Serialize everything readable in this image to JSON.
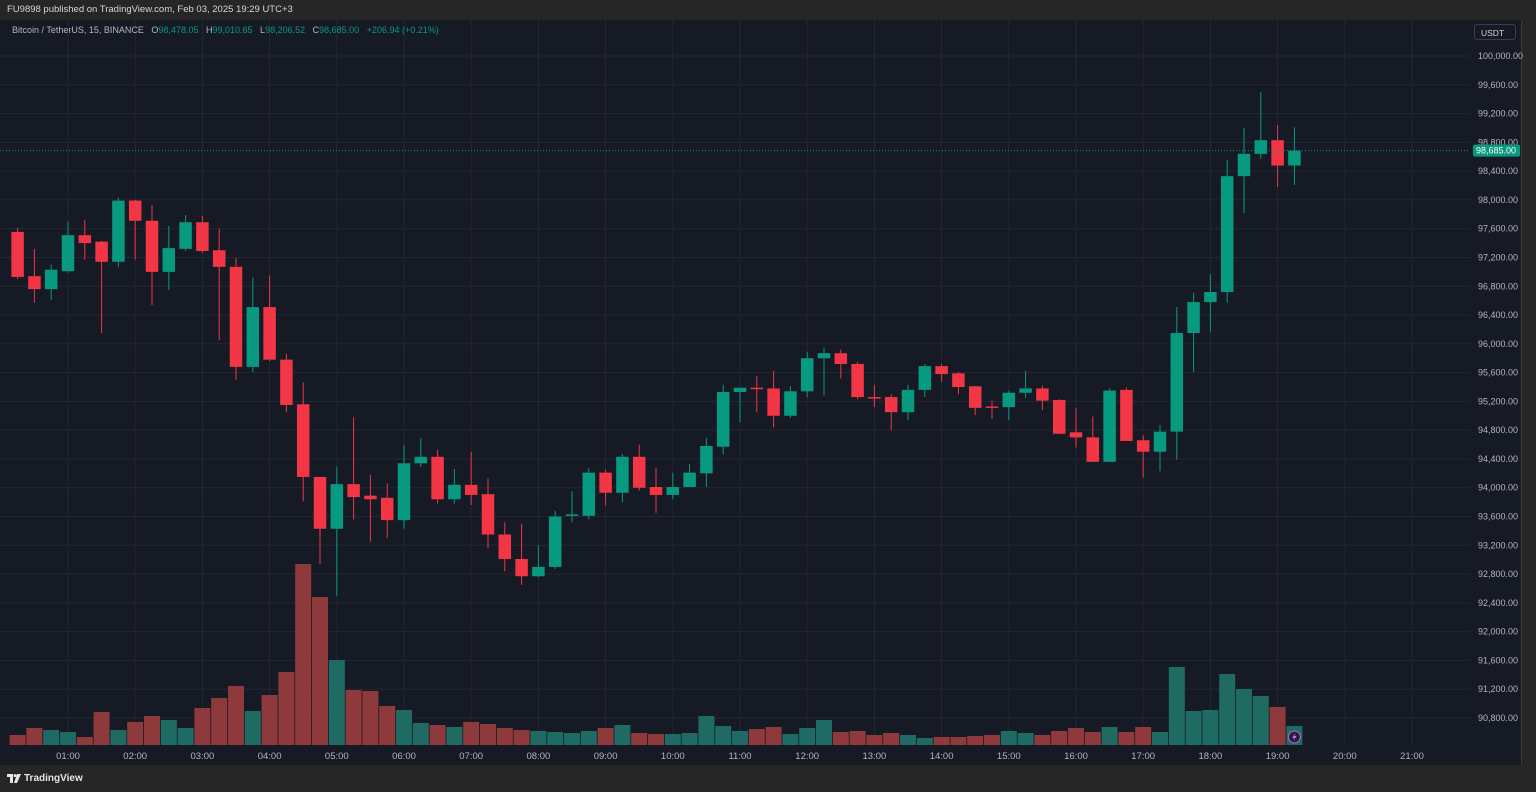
{
  "header": {
    "published": "FU9898 published on TradingView.com, Feb 03, 2025 19:29 UTC+3"
  },
  "legend": {
    "symbol": "Bitcoin / TetherUS, 15, BINANCE",
    "o_label": "O",
    "o": "98,478.05",
    "h_label": "H",
    "h": "99,010.65",
    "l_label": "L",
    "l": "98,206.52",
    "c_label": "C",
    "c": "98,685.00",
    "change": "+206.94 (+0.21%)"
  },
  "price_axis": {
    "unit": "USDT",
    "last_price_label": "98,685.00"
  },
  "footer": {
    "logo": "TradingView"
  },
  "colors": {
    "up": "#089981",
    "down": "#f23645",
    "up_volume": "#1f6b63",
    "down_volume": "#8e3a3d",
    "background": "#161a25",
    "grid": "#232733",
    "last_price": "#089981"
  },
  "icons": {
    "alert": "lightning-icon",
    "logo": "tradingview-logo-icon"
  },
  "chart_data": {
    "type": "candlestick",
    "title": "Bitcoin / TetherUS, 15, BINANCE",
    "interval_minutes": 15,
    "ylim": [
      90800,
      100000
    ],
    "y_ticks": [
      "100,000.00",
      "99,600.00",
      "99,200.00",
      "98,800.00",
      "98,400.00",
      "98,000.00",
      "97,600.00",
      "97,200.00",
      "96,800.00",
      "96,400.00",
      "96,000.00",
      "95,600.00",
      "95,200.00",
      "94,800.00",
      "94,400.00",
      "94,000.00",
      "93,600.00",
      "93,200.00",
      "92,800.00",
      "92,400.00",
      "92,000.00",
      "91,600.00",
      "91,200.00",
      "90,800.00"
    ],
    "x_ticks": [
      "01:00",
      "02:00",
      "03:00",
      "04:00",
      "05:00",
      "06:00",
      "07:00",
      "08:00",
      "09:00",
      "10:00",
      "11:00",
      "12:00",
      "13:00",
      "14:00",
      "15:00",
      "16:00",
      "17:00",
      "18:00",
      "19:00",
      "20:00",
      "21:00"
    ],
    "x_range": [
      "00:15",
      "21:30"
    ],
    "grid": true,
    "last_price": 98685,
    "columns": [
      "time",
      "open",
      "high",
      "low",
      "close",
      "volume"
    ],
    "candles": [
      [
        "00:15",
        97555,
        97610,
        96900,
        96930,
        10
      ],
      [
        "00:30",
        96940,
        97320,
        96570,
        96760,
        17
      ],
      [
        "00:45",
        96760,
        97100,
        96610,
        97030,
        15
      ],
      [
        "01:00",
        97010,
        97700,
        96990,
        97510,
        13
      ],
      [
        "01:15",
        97510,
        97720,
        97170,
        97400,
        8
      ],
      [
        "01:30",
        97420,
        97430,
        96150,
        97140,
        33
      ],
      [
        "01:45",
        97140,
        98030,
        97070,
        97990,
        15
      ],
      [
        "02:00",
        97990,
        98000,
        97170,
        97710,
        23
      ],
      [
        "02:15",
        97710,
        97920,
        96540,
        97000,
        29
      ],
      [
        "02:30",
        97000,
        97640,
        96750,
        97330,
        25
      ],
      [
        "02:45",
        97320,
        97790,
        97290,
        97690,
        17
      ],
      [
        "03:00",
        97690,
        97780,
        97260,
        97290,
        37
      ],
      [
        "03:15",
        97300,
        97600,
        96050,
        97070,
        47
      ],
      [
        "03:30",
        97070,
        97190,
        95500,
        95680,
        59
      ],
      [
        "03:45",
        95680,
        96920,
        95610,
        96510,
        34
      ],
      [
        "04:00",
        96510,
        96950,
        95760,
        95780,
        50
      ],
      [
        "04:15",
        95780,
        95860,
        95050,
        95150,
        73
      ],
      [
        "04:30",
        95160,
        95460,
        93810,
        94150,
        181
      ],
      [
        "04:45",
        94150,
        94150,
        92940,
        93430,
        148
      ],
      [
        "05:00",
        93430,
        94290,
        92500,
        94050,
        85
      ],
      [
        "05:15",
        94050,
        94980,
        93560,
        93870,
        55
      ],
      [
        "05:30",
        93890,
        94180,
        93250,
        93840,
        54
      ],
      [
        "05:45",
        93860,
        94060,
        93300,
        93550,
        39
      ],
      [
        "06:00",
        93550,
        94590,
        93430,
        94340,
        35
      ],
      [
        "06:15",
        94340,
        94690,
        94290,
        94430,
        22
      ],
      [
        "06:30",
        94430,
        94530,
        93780,
        93840,
        20
      ],
      [
        "06:45",
        93840,
        94260,
        93780,
        94040,
        18
      ],
      [
        "07:00",
        94040,
        94500,
        93760,
        93900,
        23
      ],
      [
        "07:15",
        93910,
        94130,
        93160,
        93350,
        21
      ],
      [
        "07:30",
        93350,
        93520,
        92840,
        93010,
        17
      ],
      [
        "07:45",
        93010,
        93500,
        92650,
        92770,
        15
      ],
      [
        "08:00",
        92770,
        93200,
        92760,
        92900,
        14
      ],
      [
        "08:15",
        92900,
        93680,
        92870,
        93600,
        13
      ],
      [
        "08:30",
        93610,
        93950,
        93520,
        93630,
        12
      ],
      [
        "08:45",
        93610,
        94270,
        93560,
        94210,
        14
      ],
      [
        "09:00",
        94210,
        94250,
        93750,
        93930,
        17
      ],
      [
        "09:15",
        93930,
        94470,
        93800,
        94430,
        20
      ],
      [
        "09:30",
        94430,
        94600,
        93960,
        94000,
        12
      ],
      [
        "09:45",
        94010,
        94270,
        93650,
        93900,
        11
      ],
      [
        "10:00",
        93900,
        94210,
        93840,
        94010,
        11
      ],
      [
        "10:15",
        94010,
        94330,
        94010,
        94210,
        12
      ],
      [
        "10:30",
        94200,
        94690,
        94010,
        94580,
        29
      ],
      [
        "10:45",
        94570,
        95430,
        94460,
        95330,
        19
      ],
      [
        "11:00",
        95330,
        95390,
        94910,
        95390,
        14
      ],
      [
        "11:15",
        95390,
        95550,
        95050,
        95380,
        16
      ],
      [
        "11:30",
        95380,
        95620,
        94840,
        95000,
        18
      ],
      [
        "11:45",
        95000,
        95410,
        94970,
        95340,
        11
      ],
      [
        "12:00",
        95340,
        95890,
        95260,
        95800,
        17
      ],
      [
        "12:15",
        95800,
        95950,
        95280,
        95870,
        25
      ],
      [
        "12:30",
        95870,
        95920,
        95520,
        95720,
        13
      ],
      [
        "12:45",
        95720,
        95750,
        95230,
        95260,
        14
      ],
      [
        "13:00",
        95260,
        95430,
        95120,
        95250,
        10
      ],
      [
        "13:15",
        95260,
        95300,
        94800,
        95050,
        12
      ],
      [
        "13:30",
        95050,
        95430,
        94940,
        95360,
        10
      ],
      [
        "13:45",
        95360,
        95720,
        95260,
        95690,
        7
      ],
      [
        "14:00",
        95690,
        95720,
        95470,
        95580,
        8
      ],
      [
        "14:15",
        95590,
        95610,
        95300,
        95400,
        8
      ],
      [
        "14:30",
        95410,
        95410,
        95010,
        95110,
        9
      ],
      [
        "14:45",
        95130,
        95210,
        94960,
        95120,
        10
      ],
      [
        "15:00",
        95120,
        95350,
        94940,
        95320,
        14
      ],
      [
        "15:15",
        95320,
        95620,
        95250,
        95380,
        12
      ],
      [
        "15:30",
        95380,
        95420,
        95080,
        95210,
        10
      ],
      [
        "15:45",
        95220,
        95230,
        94750,
        94750,
        14
      ],
      [
        "16:00",
        94770,
        95110,
        94560,
        94700,
        17
      ],
      [
        "16:15",
        94700,
        94990,
        94360,
        94360,
        13
      ],
      [
        "16:30",
        94360,
        95380,
        94360,
        95350,
        18
      ],
      [
        "16:45",
        95360,
        95390,
        94650,
        94650,
        13
      ],
      [
        "17:00",
        94660,
        94730,
        94140,
        94500,
        18
      ],
      [
        "17:15",
        94500,
        94870,
        94230,
        94780,
        13
      ],
      [
        "17:30",
        94780,
        96510,
        94390,
        96150,
        78
      ],
      [
        "17:45",
        96150,
        96710,
        95610,
        96580,
        34
      ],
      [
        "18:00",
        96580,
        96970,
        96170,
        96720,
        35
      ],
      [
        "18:15",
        96720,
        98560,
        96570,
        98330,
        71
      ],
      [
        "18:30",
        98330,
        99000,
        97820,
        98640,
        56
      ],
      [
        "18:45",
        98640,
        99500,
        98570,
        98830,
        49
      ],
      [
        "19:00",
        98830,
        99040,
        98180,
        98478.05,
        38
      ],
      [
        "19:15",
        98478.05,
        99010.65,
        98206.52,
        98685,
        19
      ]
    ]
  }
}
